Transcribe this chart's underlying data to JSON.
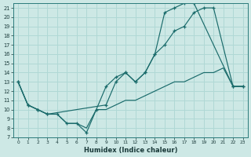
{
  "xlabel": "Humidex (Indice chaleur)",
  "bg_color": "#cde8e5",
  "grid_color": "#b0d8d5",
  "line_color": "#1a6b6b",
  "xlim": [
    -0.5,
    23.5
  ],
  "ylim": [
    7,
    21.5
  ],
  "xticks": [
    0,
    1,
    2,
    3,
    4,
    5,
    6,
    7,
    8,
    9,
    10,
    11,
    12,
    13,
    14,
    15,
    16,
    17,
    18,
    19,
    20,
    21,
    22,
    23
  ],
  "yticks": [
    7,
    8,
    9,
    10,
    11,
    12,
    13,
    14,
    15,
    16,
    17,
    18,
    19,
    20,
    21
  ],
  "line1_x": [
    0,
    1,
    2,
    3,
    4,
    5,
    6,
    7,
    8,
    9,
    10,
    11,
    12,
    13,
    14,
    15,
    16,
    17,
    18,
    22,
    23
  ],
  "line1_y": [
    13,
    10.5,
    10,
    9.5,
    9.5,
    8.5,
    8.5,
    7.5,
    10,
    12.5,
    13.5,
    14,
    13,
    14,
    16,
    20.5,
    21,
    21.5,
    21.5,
    12.5,
    12.5
  ],
  "line2_x": [
    0,
    1,
    2,
    3,
    9,
    10,
    11,
    12,
    13,
    14,
    15,
    16,
    17,
    18,
    19,
    20,
    22,
    23
  ],
  "line2_y": [
    13,
    10.5,
    10,
    9.5,
    10.5,
    13,
    14,
    13,
    14,
    16,
    17,
    18.5,
    19,
    20.5,
    21,
    21,
    12.5,
    12.5
  ],
  "line3_x": [
    0,
    1,
    2,
    3,
    4,
    5,
    6,
    7,
    8,
    9,
    10,
    11,
    12,
    13,
    14,
    15,
    16,
    17,
    18,
    19,
    20,
    21,
    22,
    23
  ],
  "line3_y": [
    13,
    10.5,
    10,
    9.5,
    9.5,
    8.5,
    8.5,
    8,
    10,
    10,
    10.5,
    11,
    11,
    11.5,
    12,
    12.5,
    13,
    13,
    13.5,
    14,
    14,
    14.5,
    12.5,
    12.5
  ],
  "marker_line1_x": [
    0,
    1,
    2,
    9,
    10,
    11,
    12,
    13,
    14,
    15,
    16,
    17,
    18,
    22,
    23
  ],
  "marker_line1_y": [
    13,
    10.5,
    10,
    12.5,
    13.5,
    14,
    13,
    14,
    16,
    20.5,
    21,
    21.5,
    21.5,
    12.5,
    12.5
  ],
  "marker_line2_x": [
    0,
    1,
    2,
    3,
    9,
    10,
    11,
    14,
    15,
    17,
    18,
    19,
    22,
    23
  ],
  "marker_line2_y": [
    13,
    10.5,
    10,
    9.5,
    10.5,
    13,
    14,
    16,
    17,
    19,
    20.5,
    21,
    12.5,
    12.5
  ],
  "marker_line3_x": [
    0,
    1,
    2,
    3,
    4,
    5,
    6,
    7,
    8,
    9
  ],
  "marker_line3_y": [
    13,
    10.5,
    10,
    9.5,
    9.5,
    8.5,
    8.5,
    8,
    10,
    10
  ]
}
